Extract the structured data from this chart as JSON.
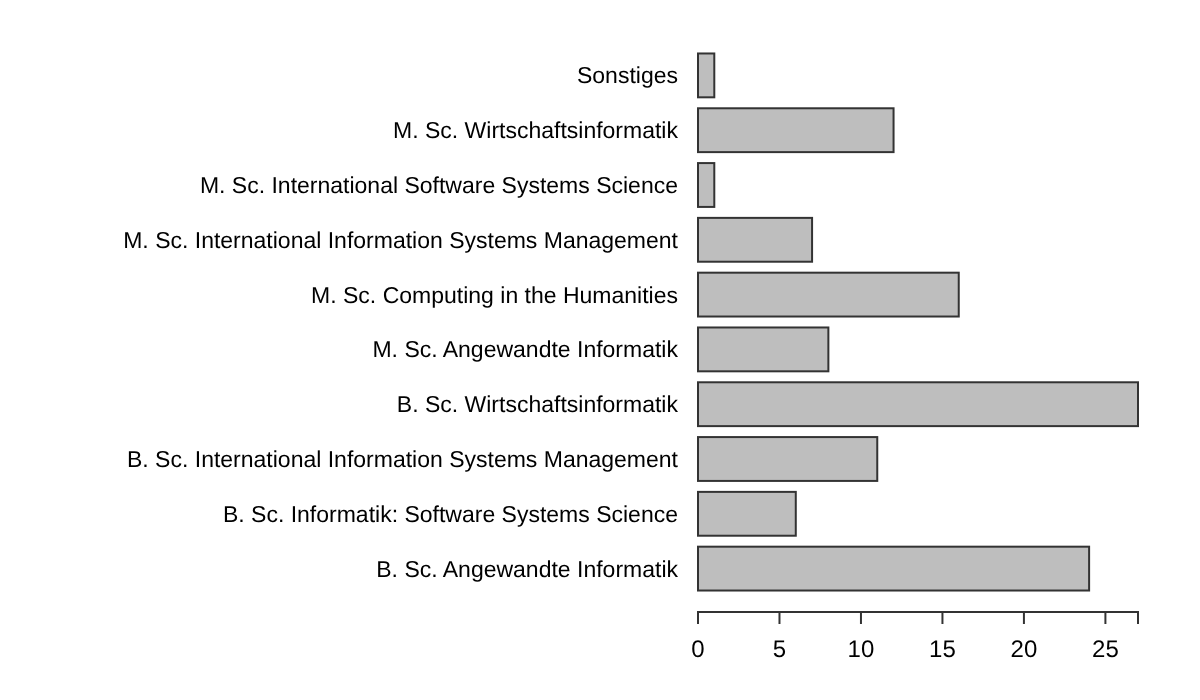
{
  "chart_data": {
    "type": "bar",
    "orientation": "horizontal",
    "categories": [
      "Sonstiges",
      "M. Sc. Wirtschaftsinformatik",
      "M. Sc. International Software Systems Science",
      "M. Sc. International Information Systems Management",
      "M. Sc. Computing in the Humanities",
      "M. Sc. Angewandte Informatik",
      "B. Sc. Wirtschaftsinformatik",
      "B. Sc. International Information Systems Management",
      "B. Sc. Informatik: Software Systems Science",
      "B. Sc. Angewandte Informatik"
    ],
    "values": [
      1,
      12,
      1,
      7,
      16,
      8,
      27,
      11,
      6,
      24
    ],
    "color": "#bebebe",
    "xlim": [
      0,
      27
    ],
    "xticks": [
      0,
      5,
      10,
      15,
      20,
      25
    ],
    "grid": false
  }
}
